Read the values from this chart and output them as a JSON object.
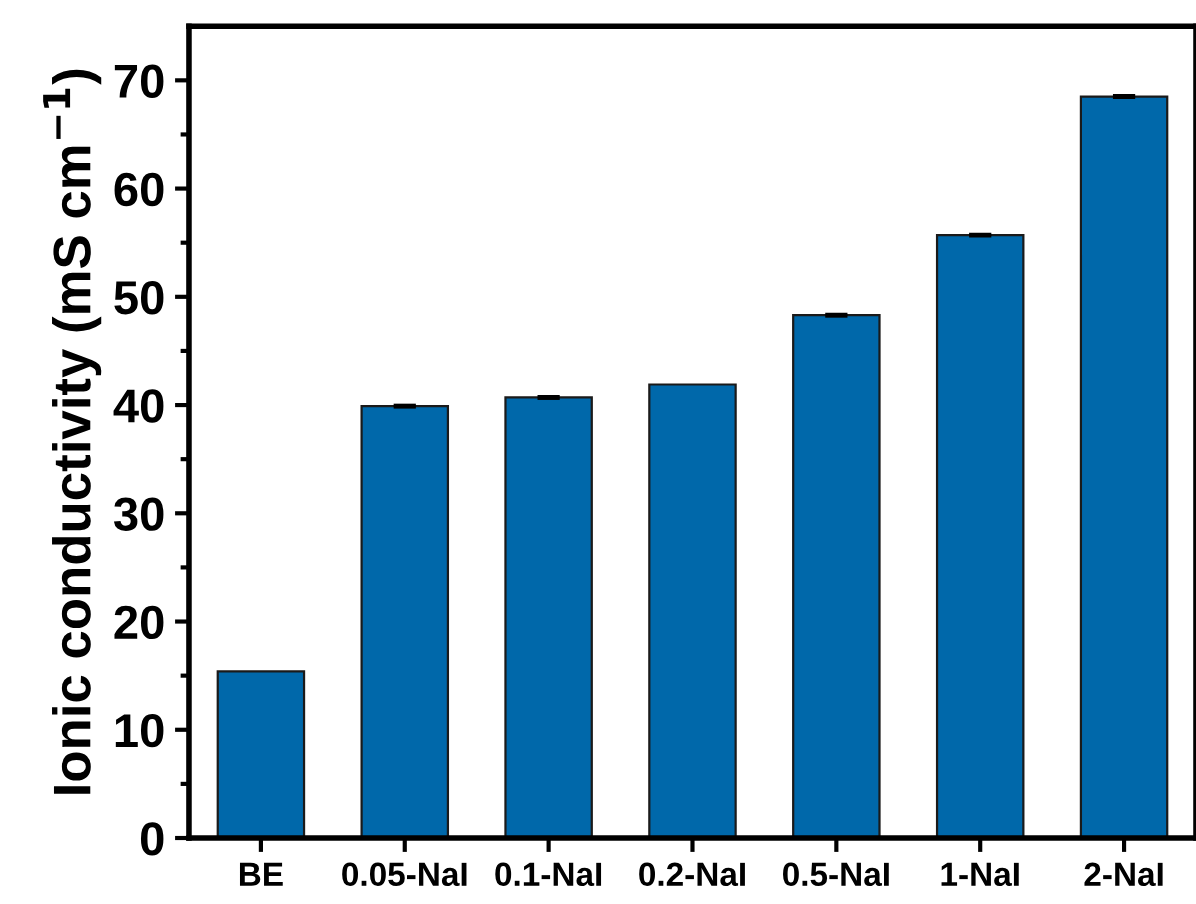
{
  "chart_data": {
    "type": "bar",
    "ylabel": "Ionic conductivity (mS cm$^{−1}$)",
    "categories": [
      "BE",
      "0.05-NaI",
      "0.1-NaI",
      "0.2-NaI",
      "0.5-NaI",
      "1-NaI",
      "2-NaI"
    ],
    "values": [
      15.4,
      39.9,
      40.7,
      41.9,
      48.3,
      55.7,
      68.5
    ],
    "errors": [
      null,
      0.1,
      0.1,
      null,
      0.1,
      0.1,
      0.1
    ],
    "color": "#0068aa",
    "ylim": [
      0,
      75
    ],
    "yticks": [
      0,
      10,
      20,
      30,
      40,
      50,
      60,
      70
    ],
    "grid": false
  }
}
